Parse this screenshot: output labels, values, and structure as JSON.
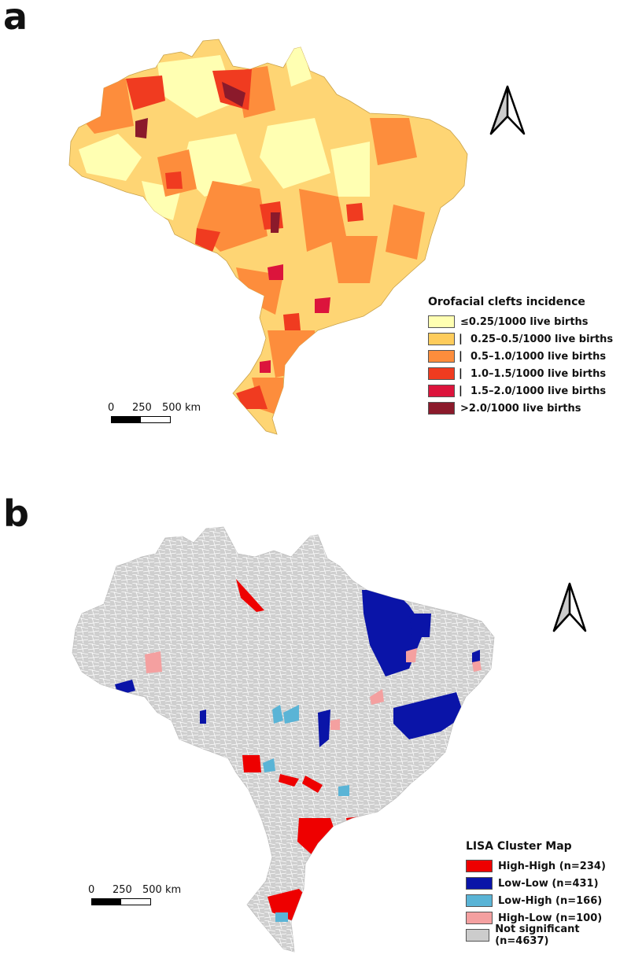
{
  "panel_a": {
    "letter": "a",
    "legend_title": "Orofacial clefts incidence",
    "legend_items": [
      {
        "label": "≤0.25/1000 live births",
        "color": "#ffffb2"
      },
      {
        "label": "⎸0.25–0.5/1000 live births",
        "color": "#fecc5c"
      },
      {
        "label": "⎸0.5–1.0/1000 live births",
        "color": "#fd8d3c"
      },
      {
        "label": "⎸1.0–1.5/1000 live births",
        "color": "#f03b20"
      },
      {
        "label": "⎸1.5–2.0/1000 live births",
        "color": "#dc143c"
      },
      {
        "label": ">2.0/1000 live births",
        "color": "#8b1a2b"
      }
    ],
    "scale_labels": [
      "0",
      "250",
      "500 km"
    ]
  },
  "panel_b": {
    "letter": "b",
    "legend_title": "LISA Cluster Map",
    "legend_items": [
      {
        "label": "High-High (n=234)",
        "color": "#ee0000"
      },
      {
        "label": "Low-Low (n=431)",
        "color": "#0a14a8"
      },
      {
        "label": "Low-High (n=166)",
        "color": "#5ab4d6"
      },
      {
        "label": "High-Low (n=100)",
        "color": "#f4a0a0"
      },
      {
        "label": "Not significant (n=4637)",
        "color": "#cccccc"
      }
    ],
    "scale_labels": [
      "0",
      "250",
      "500 km"
    ]
  },
  "colors": {
    "map_a_base": "#fed574",
    "map_b_base": "#cfcfcf",
    "north_arrow_fill": "#cccccc"
  }
}
